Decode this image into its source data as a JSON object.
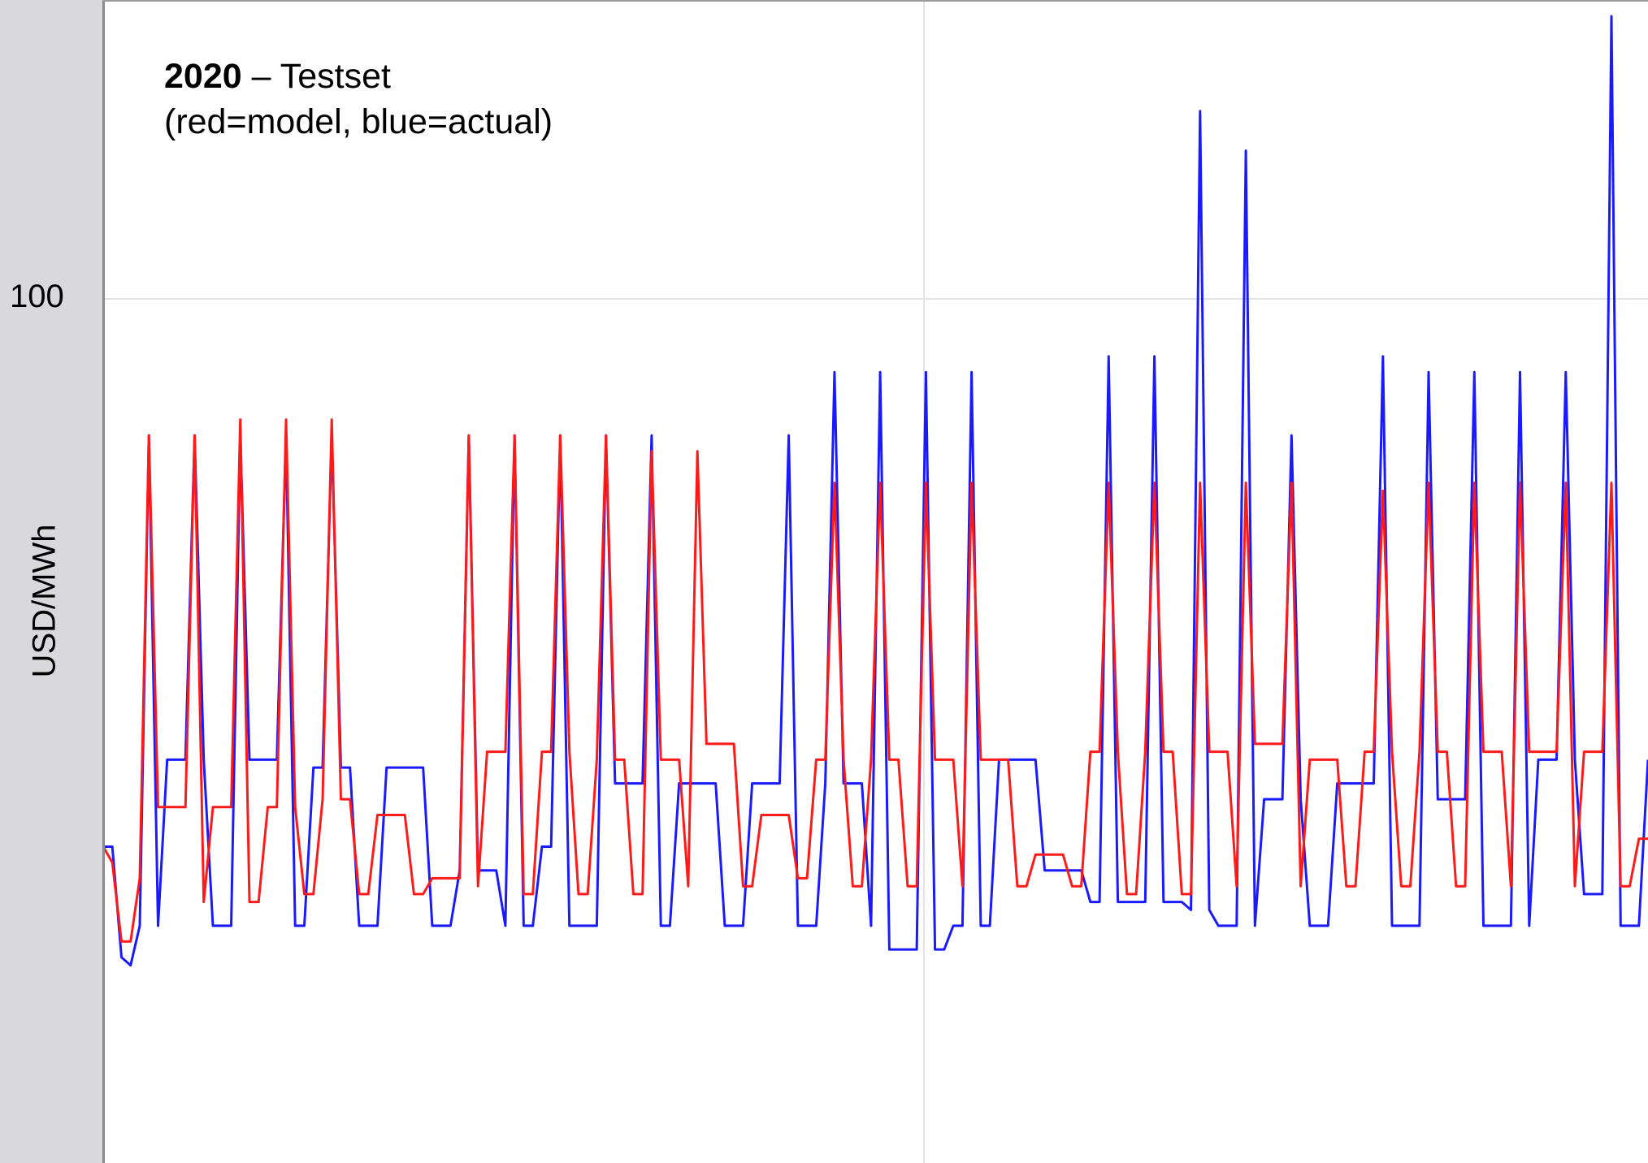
{
  "chart_data": {
    "type": "line",
    "title_year": "2020",
    "title_rest": "– Testset",
    "subtitle": "(red=model, blue=actual)",
    "ylabel": "USD/MWh",
    "xlabel": "",
    "y_ticks": [
      "100"
    ],
    "ylim": [
      0,
      145
    ],
    "grid": "light gray gridlines",
    "x_unit": "sample index (hourly)",
    "series": [
      {
        "color": "#1a1aff",
        "values": [
          40,
          40,
          26,
          25,
          30,
          30,
          30,
          51,
          51,
          51,
          51,
          51,
          30,
          30,
          30,
          51,
          51,
          51,
          51,
          51,
          30,
          30,
          30,
          50,
          50,
          50,
          50,
          50,
          30,
          30,
          30,
          50,
          50,
          50,
          50,
          50,
          30,
          30,
          30,
          37,
          37,
          37,
          37,
          37,
          30,
          30,
          30,
          30,
          40,
          40,
          40,
          30,
          30,
          30,
          30,
          48,
          48,
          48,
          48,
          48,
          30,
          30,
          30,
          48,
          48,
          48,
          48,
          48,
          30,
          30,
          30,
          48,
          48,
          48,
          48,
          48,
          30,
          30,
          30,
          48,
          48,
          48,
          48,
          48,
          30,
          30,
          27,
          27,
          27,
          27,
          27,
          27,
          27,
          30,
          30,
          30,
          30,
          30,
          51,
          51,
          51,
          51,
          51,
          37,
          37,
          37,
          37,
          37,
          33,
          33,
          33,
          33,
          33,
          33,
          33,
          33,
          33,
          33,
          33,
          32,
          32,
          32,
          30,
          30,
          30,
          30,
          30,
          46,
          46,
          46,
          46,
          46,
          30,
          30,
          30,
          48,
          48,
          48,
          48,
          48,
          30,
          30,
          30,
          30,
          30,
          30,
          46,
          46,
          46,
          46,
          46,
          30,
          30,
          30,
          30,
          30,
          30,
          51,
          51,
          51,
          51,
          51,
          34,
          34,
          34,
          30,
          30,
          30,
          30,
          51,
          51,
          51,
          51,
          51,
          32,
          32,
          32,
          30,
          30,
          30,
          51,
          51,
          51,
          51,
          51,
          30,
          30,
          30,
          30,
          30,
          30,
          51,
          51,
          51,
          51,
          51,
          32,
          32,
          32,
          30,
          30,
          30,
          51,
          51,
          51,
          51,
          51,
          30,
          30,
          30,
          50,
          50,
          50,
          50,
          50,
          30,
          30,
          30,
          30,
          30,
          30,
          51,
          51,
          51,
          51,
          51,
          30,
          30,
          30,
          50,
          50,
          50,
          50,
          50,
          31,
          31,
          31
        ],
        "peaks": [
          [
            5,
            92
          ],
          [
            10,
            92
          ],
          [
            15,
            92
          ],
          [
            20,
            92
          ],
          [
            25,
            92
          ],
          [
            40,
            92
          ],
          [
            45,
            92
          ],
          [
            50,
            92
          ],
          [
            55,
            92
          ],
          [
            60,
            92
          ],
          [
            75,
            92
          ],
          [
            80,
            100
          ],
          [
            85,
            100
          ],
          [
            90,
            100
          ],
          [
            95,
            100
          ],
          [
            110,
            102
          ],
          [
            115,
            102
          ],
          [
            120,
            133
          ],
          [
            125,
            128
          ],
          [
            130,
            92
          ],
          [
            140,
            102
          ],
          [
            145,
            100
          ],
          [
            150,
            100
          ],
          [
            155,
            100
          ],
          [
            160,
            100
          ],
          [
            165,
            145
          ]
        ]
      },
      {
        "color": "#ff1a1a",
        "values": [
          40,
          38,
          28,
          28,
          36,
          45,
          45,
          45,
          45,
          45,
          33,
          33,
          45,
          45,
          45,
          45,
          33,
          33,
          45,
          45,
          45,
          45,
          34,
          34,
          46,
          46,
          46,
          46,
          34,
          34,
          44,
          44,
          44,
          44,
          34,
          34,
          36,
          36,
          36,
          36,
          35,
          35,
          52,
          52,
          52,
          52,
          34,
          34,
          52,
          52,
          52,
          52,
          34,
          34,
          51,
          51,
          51,
          51,
          34,
          34,
          51,
          51,
          51,
          51,
          35,
          35,
          53,
          53,
          53,
          53,
          35,
          35,
          44,
          44,
          44,
          44,
          36,
          36,
          51,
          51,
          51,
          51,
          35,
          35,
          51,
          51,
          51,
          51,
          35,
          35,
          51,
          51,
          51,
          51,
          35,
          35,
          51,
          51,
          51,
          51,
          35,
          35,
          39,
          39,
          39,
          39,
          35,
          35,
          52,
          52,
          52,
          52,
          34,
          34,
          52,
          52,
          52,
          52,
          34,
          34,
          52,
          52,
          52,
          52,
          35,
          35,
          53,
          53,
          53,
          53,
          35,
          35,
          51,
          51,
          51,
          51,
          35,
          35,
          52,
          52,
          52,
          52,
          35,
          35,
          52,
          52,
          52,
          52,
          35,
          35,
          52,
          52,
          52,
          52,
          35,
          35,
          52,
          52,
          52,
          52,
          35,
          35,
          52,
          52,
          52,
          52,
          35,
          35,
          41
        ],
        "peaks": [
          [
            5,
            92
          ],
          [
            10,
            92
          ],
          [
            15,
            94
          ],
          [
            20,
            94
          ],
          [
            25,
            94
          ],
          [
            40,
            92
          ],
          [
            45,
            92
          ],
          [
            50,
            92
          ],
          [
            55,
            92
          ],
          [
            60,
            90
          ],
          [
            65,
            90
          ],
          [
            80,
            86
          ],
          [
            85,
            86
          ],
          [
            90,
            86
          ],
          [
            95,
            86
          ],
          [
            110,
            86
          ],
          [
            115,
            86
          ],
          [
            120,
            86
          ],
          [
            125,
            86
          ],
          [
            130,
            86
          ],
          [
            140,
            85
          ],
          [
            145,
            86
          ],
          [
            150,
            86
          ],
          [
            155,
            86
          ],
          [
            160,
            86
          ],
          [
            165,
            86
          ]
        ]
      }
    ]
  }
}
